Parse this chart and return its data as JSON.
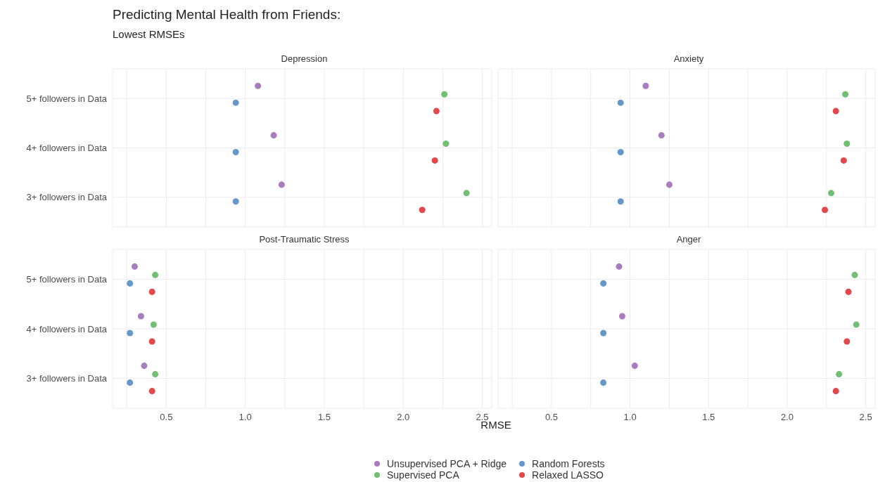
{
  "chart_data": [
    {
      "type": "scatter",
      "title": "Depression",
      "annotations": [
        "Predicting Mental Health from Friends:",
        "Lowest RMSEs"
      ],
      "orientation": "horizontal",
      "marker": "circle",
      "grid": true,
      "legend": "bottom",
      "tick_labels": "y",
      "categories": [
        "5+ followers in Data",
        "4+ followers in Data",
        "3+ followers in Data"
      ],
      "xlim": [
        0.16,
        2.56
      ],
      "xticks": [
        {
          "value": 0.25,
          "label": null
        },
        {
          "value": 0.5,
          "label": null
        },
        {
          "value": 0.75,
          "label": null
        },
        {
          "value": 1,
          "label": null
        },
        {
          "value": 1.25,
          "label": null
        },
        {
          "value": 1.5,
          "label": null
        },
        {
          "value": 1.75,
          "label": null
        },
        {
          "value": 2,
          "label": null
        },
        {
          "value": 2.25,
          "label": null
        },
        {
          "value": 2.5,
          "label": null
        }
      ],
      "series": [
        {
          "name": "Unsupervised PCA + Ridge",
          "color": "#a97cc0",
          "values": [
            1.08,
            1.18,
            1.23
          ]
        },
        {
          "name": "Supervised PCA",
          "color": "#72bf72",
          "values": [
            2.26,
            2.27,
            2.4
          ]
        },
        {
          "name": "Random Forests",
          "color": "#6498c8",
          "values": [
            0.94,
            0.94,
            0.94
          ]
        },
        {
          "name": "Relaxed LASSO",
          "color": "#e2474b",
          "values": [
            2.21,
            2.2,
            2.12
          ]
        }
      ]
    },
    {
      "type": "scatter",
      "title": "Anxiety",
      "orientation": "horizontal",
      "marker": "circle",
      "grid": true,
      "tick_labels": false,
      "categories": [
        null,
        null,
        null
      ],
      "xlim": [
        0.16,
        2.56
      ],
      "xticks": [
        {
          "value": 0.25,
          "label": null
        },
        {
          "value": 0.5,
          "label": null
        },
        {
          "value": 0.75,
          "label": null
        },
        {
          "value": 1,
          "label": null
        },
        {
          "value": 1.25,
          "label": null
        },
        {
          "value": 1.5,
          "label": null
        },
        {
          "value": 1.75,
          "label": null
        },
        {
          "value": 2,
          "label": null
        },
        {
          "value": 2.25,
          "label": null
        },
        {
          "value": 2.5,
          "label": null
        }
      ],
      "series": [
        {
          "color": "#a97cc0",
          "values": [
            1.1,
            1.2,
            1.25
          ]
        },
        {
          "color": "#72bf72",
          "values": [
            2.37,
            2.38,
            2.28
          ]
        },
        {
          "color": "#6498c8",
          "values": [
            0.94,
            0.94,
            0.94
          ]
        },
        {
          "color": "#e2474b",
          "values": [
            2.31,
            2.36,
            2.24
          ]
        }
      ]
    },
    {
      "type": "scatter",
      "title": "Post-Traumatic Stress",
      "xlabel": "RMSE",
      "orientation": "horizontal",
      "marker": "circle",
      "grid": true,
      "categories": [
        "5+ followers in Data",
        "4+ followers in Data",
        "3+ followers in Data"
      ],
      "xlim": [
        0.16,
        2.56
      ],
      "xticks": [
        {
          "value": 0.25,
          "label": null
        },
        0.5,
        {
          "value": 0.75,
          "label": null
        },
        {
          "value": 1,
          "label": "1.0"
        },
        {
          "value": 1.25,
          "label": null
        },
        1.5,
        {
          "value": 1.75,
          "label": null
        },
        {
          "value": 2,
          "label": "2.0"
        },
        {
          "value": 2.25,
          "label": null
        },
        2.5
      ],
      "series": [
        {
          "color": "#a97cc0",
          "values": [
            0.3,
            0.34,
            0.36
          ]
        },
        {
          "color": "#72bf72",
          "values": [
            0.43,
            0.42,
            0.43
          ]
        },
        {
          "color": "#6498c8",
          "values": [
            0.27,
            0.27,
            0.27
          ]
        },
        {
          "color": "#e2474b",
          "values": [
            0.41,
            0.41,
            0.41
          ]
        }
      ]
    },
    {
      "type": "scatter",
      "title": "Anger",
      "orientation": "horizontal",
      "marker": "circle",
      "grid": true,
      "tick_labels": "x",
      "categories": [
        null,
        null,
        null
      ],
      "xlim": [
        0.16,
        2.56
      ],
      "xticks": [
        {
          "value": 0.25,
          "label": null
        },
        0.5,
        {
          "value": 0.75,
          "label": null
        },
        {
          "value": 1,
          "label": "1.0"
        },
        {
          "value": 1.25,
          "label": null
        },
        1.5,
        {
          "value": 1.75,
          "label": null
        },
        {
          "value": 2,
          "label": "2.0"
        },
        {
          "value": 2.25,
          "label": null
        },
        2.5
      ],
      "series": [
        {
          "color": "#a97cc0",
          "values": [
            0.93,
            0.95,
            1.03
          ]
        },
        {
          "color": "#72bf72",
          "values": [
            2.43,
            2.44,
            2.33
          ]
        },
        {
          "color": "#6498c8",
          "values": [
            0.83,
            0.83,
            0.83
          ]
        },
        {
          "color": "#e2474b",
          "values": [
            2.39,
            2.38,
            2.31
          ]
        }
      ]
    }
  ]
}
